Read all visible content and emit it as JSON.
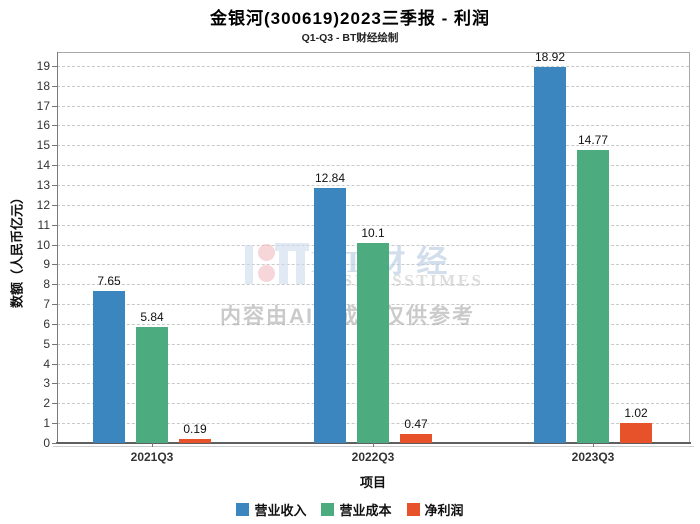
{
  "title": "金银河(300619)2023三季报 - 利润",
  "subtitle": "Q1-Q3 - BT财经绘制",
  "watermark": {
    "brand_cn": "BT财经",
    "brand_en": "BUSINESSTIMES",
    "disclaimer": "内容由AI生成，仅供参考"
  },
  "chart_data": {
    "type": "bar",
    "title": "金银河(300619)2023三季报 - 利润",
    "subtitle": "Q1-Q3 - BT财经绘制",
    "categories": [
      "2021Q3",
      "2022Q3",
      "2023Q3"
    ],
    "series": [
      {
        "name": "营业收入",
        "color": "#3c86c0",
        "values": [
          7.65,
          12.84,
          18.92
        ]
      },
      {
        "name": "营业成本",
        "color": "#4dab80",
        "values": [
          5.84,
          10.1,
          14.77
        ]
      },
      {
        "name": "净利润",
        "color": "#e8522b",
        "values": [
          0.19,
          0.47,
          1.02
        ]
      }
    ],
    "xlabel": "项目",
    "ylabel": "数额（人民币亿元）",
    "ylim": [
      0,
      19.7
    ],
    "ytick_step": 1,
    "grid": "dashed-horizontal",
    "legend_position": "bottom",
    "axis_colors": {
      "grid": "#c9c9c9",
      "frame": "#a8a8a8",
      "axis": "#5f5f5f"
    }
  }
}
